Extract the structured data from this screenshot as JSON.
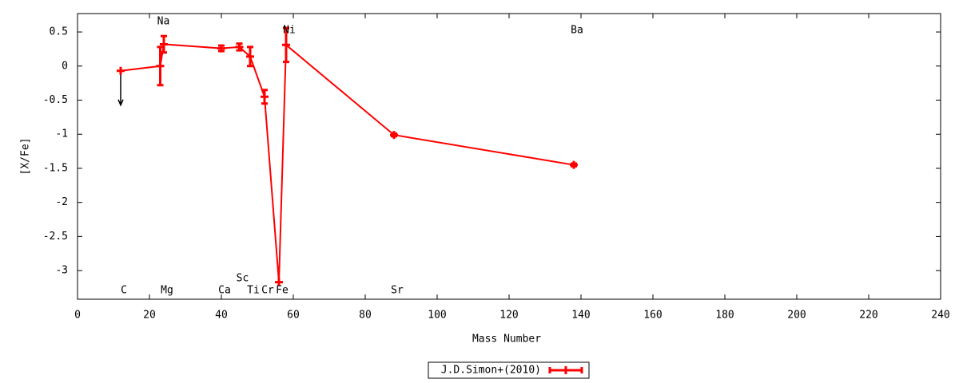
{
  "chart_data": {
    "type": "line",
    "x_label": "Mass Number",
    "y_label": "[X/Fe]",
    "xlim": [
      0,
      240
    ],
    "ylim": [
      -3.42,
      0.77
    ],
    "xticks": [
      0,
      20,
      40,
      60,
      80,
      100,
      120,
      140,
      160,
      180,
      200,
      220,
      240
    ],
    "yticks": [
      0.5,
      0,
      -0.5,
      -1,
      -1.5,
      -2,
      -2.5,
      -3
    ],
    "legend": "bottom",
    "series": [
      {
        "name": "J.D.Simon+(2010)",
        "color": "#ff0000",
        "elements": [
          "C",
          "Na",
          "Mg",
          "Ca",
          "Sc",
          "Ti",
          "Cr",
          "Fe",
          "Ni",
          "Sr",
          "Ba"
        ],
        "x": [
          12,
          23,
          24,
          40,
          45,
          48,
          52,
          56,
          58,
          88,
          138
        ],
        "values": [
          -0.07,
          0,
          0.32,
          0.26,
          0.28,
          0.14,
          -0.45,
          -3.17,
          0.31,
          -1.01,
          -1.45
        ],
        "errors": [
          null,
          0.28,
          0.12,
          0.04,
          0.05,
          0.14,
          0.1,
          null,
          0.25,
          0.02,
          0.02
        ],
        "upper_limits": [
          true,
          false,
          false,
          false,
          false,
          false,
          false,
          false,
          false,
          false,
          false
        ]
      }
    ]
  }
}
